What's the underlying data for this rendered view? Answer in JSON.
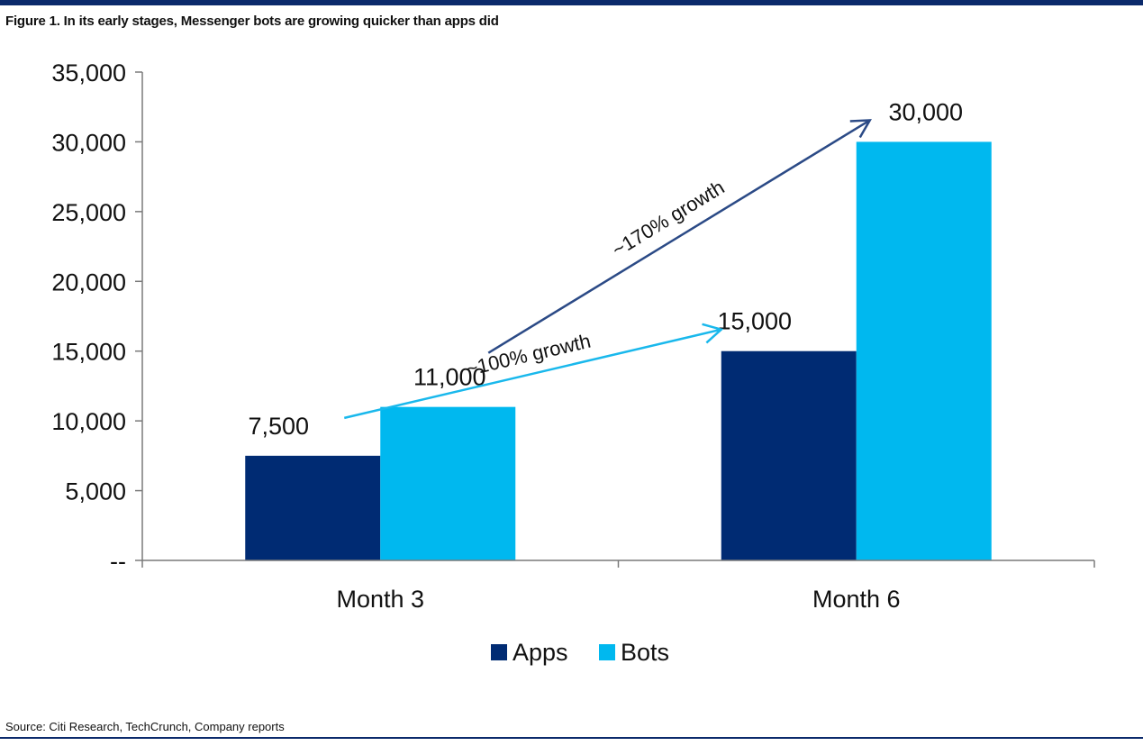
{
  "header": {
    "title": "Figure 1. In its early stages, Messenger bots are growing quicker than apps did"
  },
  "footer": {
    "source": "Source: Citi Research, TechCrunch, Company reports"
  },
  "colors": {
    "apps": "#002b73",
    "bots": "#00b8ef",
    "frame": "#0b2a6b",
    "arrow_dark": "#2b4a86",
    "arrow_light": "#19b8ec"
  },
  "chart_data": {
    "type": "bar",
    "title": "Figure 1. In its early stages, Messenger bots are growing quicker than apps did",
    "xlabel": "",
    "ylabel": "",
    "categories": [
      "Month 3",
      "Month 6"
    ],
    "series": [
      {
        "name": "Apps",
        "values": [
          7500,
          15000
        ]
      },
      {
        "name": "Bots",
        "values": [
          11000,
          30000
        ]
      }
    ],
    "data_labels": {
      "Apps": [
        "7,500",
        "15,000"
      ],
      "Bots": [
        "11,000",
        "30,000"
      ]
    },
    "ylim": [
      0,
      35000
    ],
    "yticks": [
      0,
      5000,
      10000,
      15000,
      20000,
      25000,
      30000,
      35000
    ],
    "ytick_labels": [
      "--",
      "5,000",
      "10,000",
      "15,000",
      "20,000",
      "25,000",
      "30,000",
      "35,000"
    ],
    "grid": false,
    "legend": {
      "position": "bottom",
      "entries": [
        "Apps",
        "Bots"
      ]
    },
    "annotations": [
      {
        "text": "~100% growth",
        "from_series": "Apps",
        "from_category": "Month 3",
        "to_series": "Apps",
        "to_category": "Month 6"
      },
      {
        "text": "~170% growth",
        "from_series": "Bots",
        "from_category": "Month 3",
        "to_series": "Bots",
        "to_category": "Month 6"
      }
    ]
  }
}
